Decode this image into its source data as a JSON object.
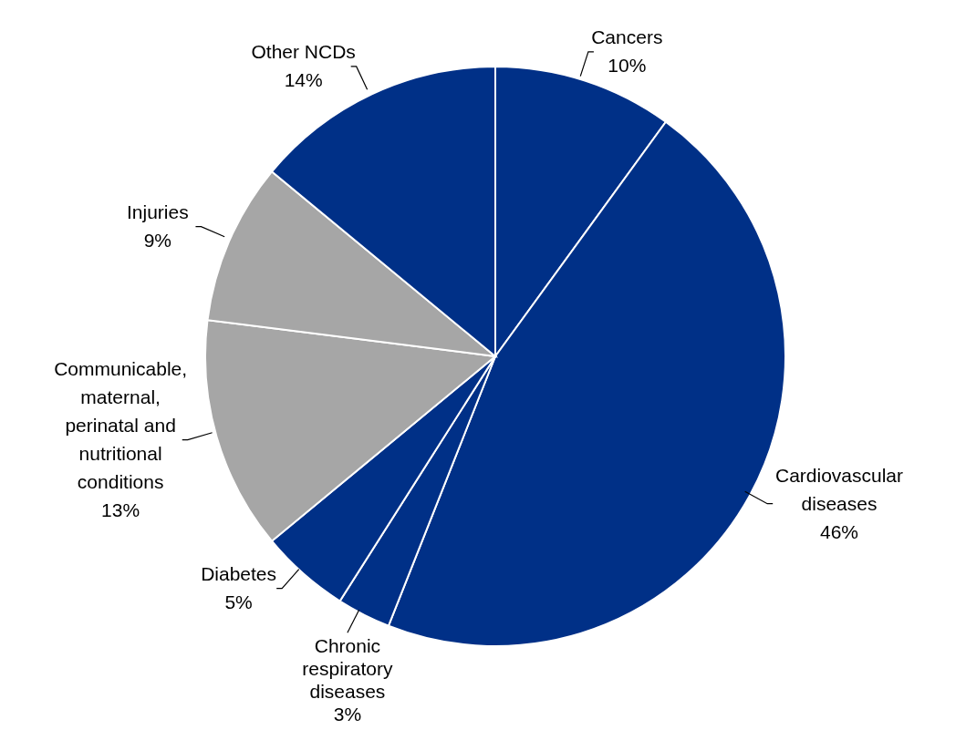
{
  "chart_data": {
    "type": "pie",
    "categories": [
      "Cancers",
      "Cardiovascular diseases",
      "Chronic respiratory diseases",
      "Diabetes",
      "Communicable, maternal, perinatal and nutritional conditions",
      "Injuries",
      "Other NCDs"
    ],
    "values": [
      10,
      46,
      3,
      5,
      13,
      9,
      14
    ],
    "value_labels": [
      "10%",
      "46%",
      "3%",
      "5%",
      "13%",
      "9%",
      "14%"
    ],
    "colors": [
      "#003087",
      "#003087",
      "#003087",
      "#003087",
      "#a6a6a6",
      "#a6a6a6",
      "#003087"
    ],
    "legend": false
  }
}
